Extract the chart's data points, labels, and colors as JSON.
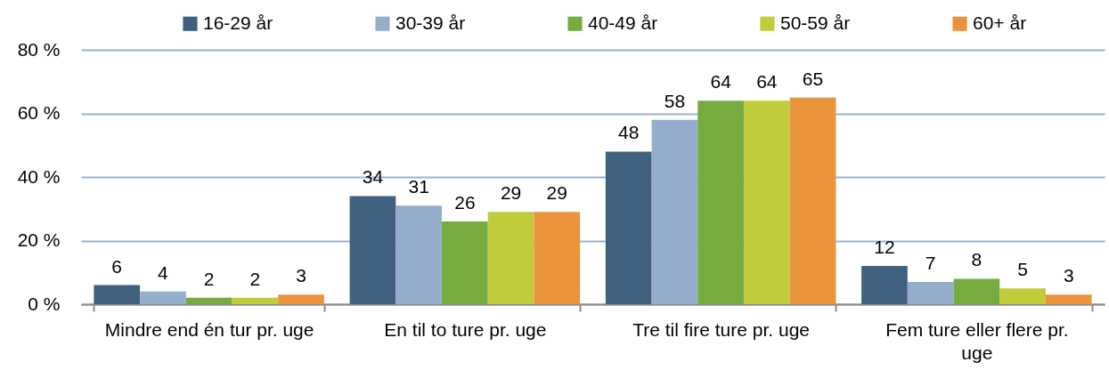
{
  "chart_data": {
    "type": "bar",
    "categories": [
      "Mindre end én tur pr. uge",
      "En til to ture pr. uge",
      "Tre til fire ture pr. uge",
      "Fem ture eller flere pr. uge"
    ],
    "series": [
      {
        "name": "16-29 år",
        "color": "#3f617f",
        "values": [
          6,
          34,
          48,
          12
        ]
      },
      {
        "name": "30-39 år",
        "color": "#95aecb",
        "values": [
          4,
          31,
          58,
          7
        ]
      },
      {
        "name": "40-49 år",
        "color": "#76ab40",
        "values": [
          2,
          26,
          64,
          8
        ]
      },
      {
        "name": "50-59 år",
        "color": "#c1cc3b",
        "values": [
          2,
          29,
          64,
          5
        ]
      },
      {
        "name": "60+ år",
        "color": "#e9943a",
        "values": [
          3,
          29,
          65,
          3
        ]
      }
    ],
    "ylim": [
      0,
      80
    ],
    "yticks": [
      {
        "value": 0,
        "label": "0 %"
      },
      {
        "value": 20,
        "label": "20 %"
      },
      {
        "value": 40,
        "label": "40 %"
      },
      {
        "value": 60,
        "label": "60 %"
      },
      {
        "value": 80,
        "label": "80 %"
      }
    ],
    "grid": "y",
    "legend": "top",
    "data_labels": true
  }
}
